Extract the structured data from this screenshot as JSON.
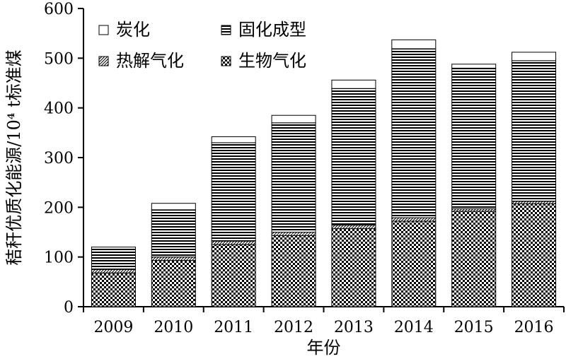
{
  "chart_data": {
    "type": "bar",
    "stacked": true,
    "categories": [
      "2009",
      "2010",
      "2011",
      "2012",
      "2013",
      "2014",
      "2015",
      "2016"
    ],
    "series": [
      {
        "name": "生物气化",
        "pattern": "checker",
        "values": [
          68,
          93,
          125,
          143,
          157,
          172,
          192,
          207
        ]
      },
      {
        "name": "热解气化",
        "pattern": "diagonal",
        "values": [
          7,
          7,
          7,
          7,
          7,
          7,
          5,
          5
        ]
      },
      {
        "name": "固化成型",
        "pattern": "horizontal",
        "values": [
          45,
          95,
          198,
          220,
          275,
          340,
          283,
          283
        ]
      },
      {
        "name": "炭化",
        "pattern": "empty",
        "values": [
          0,
          13,
          12,
          15,
          17,
          18,
          8,
          17
        ]
      }
    ],
    "xlabel": "年份",
    "ylabel": "秸秆优质化能源/10⁴ t标准煤",
    "ylim": [
      0,
      600
    ],
    "yticks": [
      0,
      100,
      200,
      300,
      400,
      500,
      600
    ],
    "grid": false,
    "legend": {
      "position": "top-left",
      "columns": [
        [
          "炭化",
          "热解气化"
        ],
        [
          "固化成型",
          "生物气化"
        ]
      ]
    }
  }
}
